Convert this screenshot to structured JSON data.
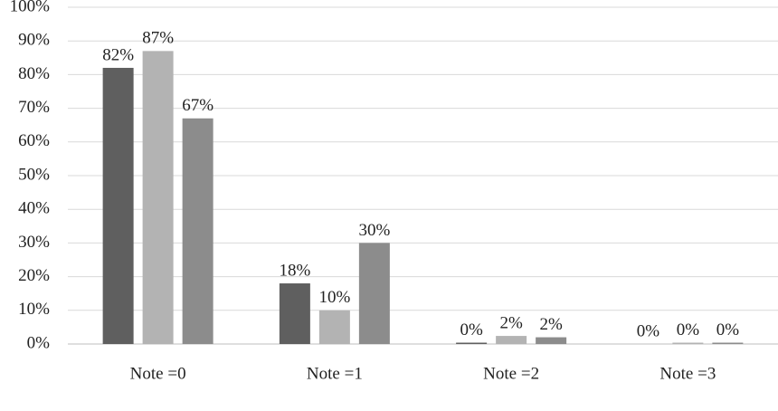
{
  "chart_data": {
    "type": "bar",
    "categories": [
      "Note =0",
      "Note =1",
      "Note =2",
      "Note =3"
    ],
    "series": [
      {
        "color": "#5f5f5f",
        "values": [
          82,
          18,
          0.4,
          0
        ],
        "value_labels": [
          "82%",
          "18%",
          "0%",
          "0%"
        ]
      },
      {
        "color": "#b3b3b3",
        "values": [
          87,
          10,
          2.4,
          0.4
        ],
        "value_labels": [
          "87%",
          "10%",
          "2%",
          "0%"
        ]
      },
      {
        "color": "#8c8c8c",
        "values": [
          67,
          30,
          2,
          0.4
        ],
        "value_labels": [
          "67%",
          "30%",
          "2%",
          "0%"
        ]
      }
    ],
    "ylim": [
      0,
      100
    ],
    "yticks": [
      {
        "value": 0,
        "label": "0%"
      },
      {
        "value": 10,
        "label": "10%"
      },
      {
        "value": 20,
        "label": "20%"
      },
      {
        "value": 30,
        "label": "30%"
      },
      {
        "value": 40,
        "label": "40%"
      },
      {
        "value": 50,
        "label": "50%"
      },
      {
        "value": 60,
        "label": "60%"
      },
      {
        "value": 70,
        "label": "70%"
      },
      {
        "value": 80,
        "label": "80%"
      },
      {
        "value": 90,
        "label": "90%"
      },
      {
        "value": 100,
        "label": "100%"
      }
    ],
    "grid": true
  }
}
